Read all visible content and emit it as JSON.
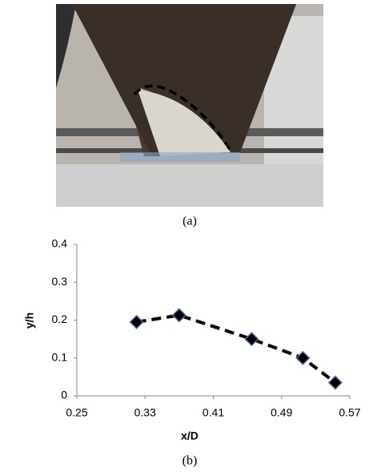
{
  "captions": [
    "(a)",
    "(b)"
  ],
  "chart_data": {
    "type": "scatter",
    "xlabel": "x/D",
    "ylabel": "y/h",
    "series": [
      {
        "x": [
          0.32,
          0.37,
          0.455,
          0.515,
          0.553
        ],
        "values": [
          0.195,
          0.213,
          0.15,
          0.1,
          0.035
        ],
        "color": "#000000",
        "edgecolor": "#4f6f9f",
        "line": "dashed"
      }
    ],
    "xlim": [
      0.25,
      0.57
    ],
    "xticks": [
      0.25,
      0.33,
      0.41,
      0.49,
      0.57
    ],
    "ylim": [
      0,
      0.4
    ],
    "yticks": [
      0,
      0.1,
      0.2,
      0.3,
      0.4
    ],
    "grid": false
  }
}
